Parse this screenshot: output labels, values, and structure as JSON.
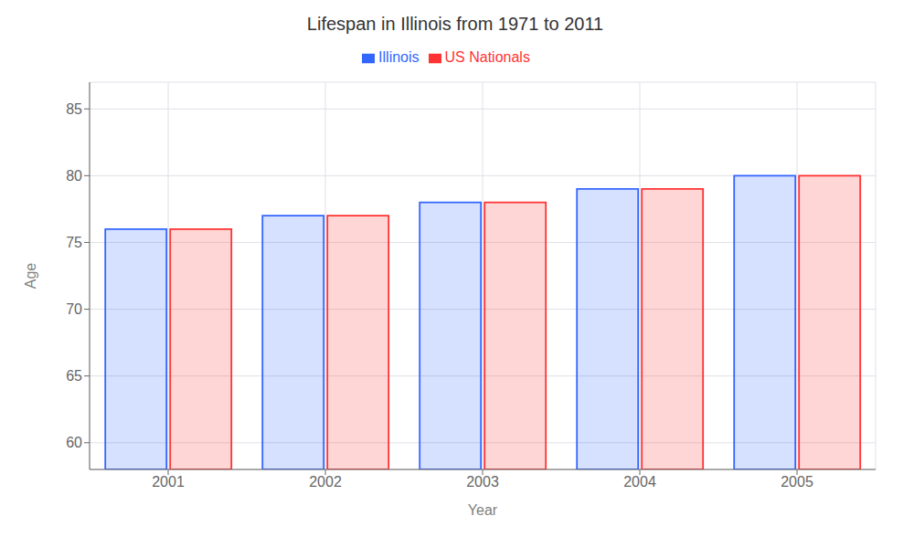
{
  "chart_data": {
    "type": "bar",
    "title": "Lifespan in Illinois from 1971 to 2011",
    "x_label": "Year",
    "y_label": "Age",
    "categories": [
      "2001",
      "2002",
      "2003",
      "2004",
      "2005"
    ],
    "series": [
      {
        "name": "Illinois",
        "color": "#3366ff",
        "values": [
          76,
          77,
          78,
          79,
          80
        ]
      },
      {
        "name": "US Nationals",
        "color": "#ff3333",
        "values": [
          76,
          77,
          78,
          79,
          80
        ]
      }
    ],
    "ylim": [
      58,
      87
    ],
    "yticks": [
      60,
      65,
      70,
      75,
      80,
      85
    ],
    "grid": true,
    "legend": "top"
  }
}
